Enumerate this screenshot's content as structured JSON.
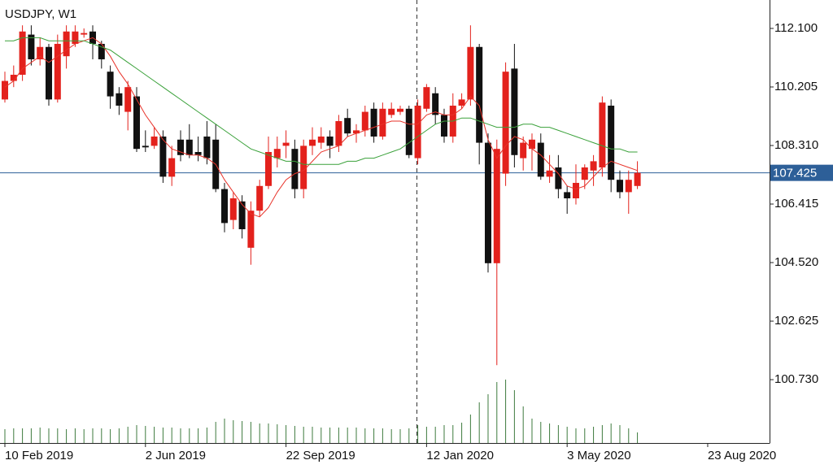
{
  "chart_data": {
    "type": "candlestick",
    "title": "USDJPY, W1",
    "up_color": "#e3211c",
    "down_color": "#111111",
    "open": [
      109.8,
      110.4,
      110.6,
      111.9,
      111.1,
      111.5,
      109.8,
      111.2,
      111.6,
      111.9,
      112.0,
      111.6,
      110.7,
      110.0,
      109.4,
      109.9,
      108.3,
      108.3,
      108.6,
      107.3,
      108.5,
      108.5,
      108.1,
      108.6,
      108.5,
      106.9,
      105.9,
      106.5,
      105.0,
      106.2,
      107.0,
      107.9,
      108.3,
      108.2,
      106.9,
      108.3,
      108.4,
      108.6,
      108.3,
      109.2,
      108.7,
      108.8,
      109.5,
      108.6,
      109.3,
      109.4,
      109.5,
      107.9,
      109.5,
      110.0,
      109.3,
      108.6,
      109.6,
      109.8,
      111.5,
      108.4,
      104.5,
      107.4,
      110.8,
      107.9,
      108.2,
      108.4,
      107.3,
      107.6,
      106.8,
      106.6,
      107.2,
      107.5,
      107.6,
      109.6,
      107.2,
      106.8,
      107.0
    ],
    "high": [
      110.7,
      110.9,
      112.2,
      112.2,
      111.8,
      111.6,
      111.9,
      112.2,
      112.2,
      112.1,
      112.2,
      111.7,
      110.9,
      110.2,
      110.4,
      110.2,
      108.8,
      108.9,
      108.8,
      108.3,
      108.8,
      109.0,
      108.6,
      109.1,
      109.0,
      107.1,
      106.8,
      106.7,
      106.5,
      107.2,
      108.6,
      108.6,
      108.8,
      108.5,
      108.5,
      108.9,
      108.9,
      108.8,
      109.3,
      109.5,
      109.0,
      109.6,
      109.7,
      109.7,
      109.7,
      109.6,
      109.6,
      109.8,
      110.3,
      110.2,
      109.5,
      110.0,
      110.0,
      112.2,
      111.6,
      108.7,
      108.5,
      111.0,
      111.6,
      108.6,
      108.7,
      108.7,
      108.0,
      108.0,
      107.0,
      107.7,
      107.7,
      108.0,
      109.9,
      109.8,
      107.5,
      107.5,
      107.8
    ],
    "low": [
      109.7,
      110.2,
      110.4,
      110.9,
      110.9,
      109.6,
      109.7,
      110.8,
      111.5,
      111.8,
      111.1,
      110.8,
      109.5,
      109.3,
      108.8,
      108.1,
      108.1,
      108.2,
      107.1,
      107.0,
      107.8,
      107.9,
      107.8,
      107.7,
      106.8,
      105.5,
      105.6,
      105.3,
      104.45,
      106.0,
      106.9,
      107.6,
      107.9,
      106.6,
      106.6,
      108.0,
      108.2,
      107.9,
      108.1,
      108.6,
      108.4,
      108.6,
      108.4,
      108.5,
      109.2,
      109.3,
      107.9,
      107.7,
      109.4,
      109.0,
      108.4,
      108.4,
      109.5,
      109.6,
      107.7,
      104.2,
      101.2,
      107.0,
      107.6,
      107.5,
      107.5,
      107.2,
      107.1,
      106.6,
      106.1,
      106.4,
      106.9,
      107.0,
      107.3,
      106.8,
      106.6,
      106.1,
      106.9
    ],
    "close": [
      110.4,
      110.6,
      112.0,
      111.1,
      111.5,
      109.8,
      111.6,
      112.0,
      112.0,
      111.95,
      111.6,
      111.1,
      109.9,
      109.6,
      110.2,
      108.2,
      108.25,
      108.6,
      107.3,
      107.9,
      108.0,
      108.0,
      108.0,
      107.9,
      106.9,
      105.8,
      106.6,
      105.6,
      106.2,
      107.0,
      108.1,
      108.2,
      108.4,
      106.9,
      108.3,
      108.5,
      108.6,
      108.3,
      109.1,
      108.7,
      108.8,
      109.4,
      108.6,
      109.5,
      109.5,
      109.5,
      108.0,
      109.6,
      110.2,
      109.3,
      108.6,
      109.6,
      109.8,
      111.5,
      108.4,
      104.5,
      108.2,
      110.7,
      108.0,
      108.4,
      108.5,
      107.3,
      107.5,
      106.9,
      106.6,
      107.1,
      107.6,
      107.8,
      109.7,
      107.2,
      106.8,
      107.2,
      107.425
    ],
    "moving_averages": [
      {
        "color": "#e8332a",
        "values": [
          110.2,
          110.4,
          110.8,
          111.0,
          111.2,
          111.0,
          111.2,
          111.4,
          111.6,
          111.7,
          111.8,
          111.6,
          111.2,
          110.7,
          110.3,
          109.8,
          109.3,
          108.9,
          108.5,
          108.2,
          108.1,
          108.0,
          108.0,
          107.9,
          107.7,
          107.2,
          106.8,
          106.4,
          106.1,
          106.0,
          106.3,
          106.8,
          107.2,
          107.4,
          107.5,
          107.8,
          108.1,
          108.2,
          108.3,
          108.6,
          108.7,
          108.8,
          108.9,
          109.0,
          109.1,
          109.1,
          109.0,
          109.0,
          109.3,
          109.4,
          109.3,
          109.3,
          109.5,
          109.9,
          109.6,
          108.5,
          107.9,
          108.3,
          108.6,
          108.5,
          108.2,
          108.0,
          107.7,
          107.4,
          107.0,
          106.9,
          107.0,
          107.3,
          107.6,
          107.8,
          107.7,
          107.6,
          107.5
        ]
      },
      {
        "color": "#3aa13a",
        "values": [
          111.7,
          111.7,
          111.8,
          111.8,
          111.8,
          111.7,
          111.7,
          111.7,
          111.7,
          111.7,
          111.6,
          111.5,
          111.4,
          111.2,
          111.0,
          110.8,
          110.6,
          110.4,
          110.2,
          110.0,
          109.8,
          109.6,
          109.4,
          109.2,
          109.0,
          108.8,
          108.6,
          108.4,
          108.2,
          108.1,
          108.0,
          107.9,
          107.8,
          107.8,
          107.7,
          107.7,
          107.7,
          107.7,
          107.7,
          107.8,
          107.8,
          107.9,
          107.9,
          108.0,
          108.1,
          108.2,
          108.4,
          108.6,
          108.8,
          109.0,
          109.1,
          109.1,
          109.2,
          109.2,
          109.1,
          109.0,
          108.9,
          108.9,
          108.9,
          109.0,
          109.0,
          108.9,
          108.9,
          108.8,
          108.7,
          108.6,
          108.5,
          108.4,
          108.3,
          108.2,
          108.2,
          108.1,
          108.1
        ]
      }
    ],
    "volume": {
      "color": "#3d7a3d",
      "values": [
        17,
        18,
        18,
        18,
        19,
        18,
        18,
        17,
        18,
        17,
        18,
        18,
        17,
        18,
        20,
        22,
        21,
        20,
        19,
        19,
        18,
        18,
        18,
        19,
        26,
        30,
        28,
        27,
        26,
        24,
        24,
        23,
        22,
        21,
        20,
        20,
        19,
        19,
        19,
        19,
        19,
        18,
        18,
        18,
        17,
        17,
        18,
        22,
        20,
        20,
        22,
        22,
        25,
        35,
        50,
        60,
        75,
        78,
        65,
        45,
        30,
        26,
        24,
        22,
        20,
        18,
        18,
        20,
        22,
        24,
        22,
        18,
        13
      ]
    },
    "price_line": {
      "value": 107.425,
      "label": "107.425",
      "color": "#2d5f98"
    },
    "xlim": [
      -0.556,
      87.04
    ],
    "ylim": [
      98.68,
      113.02
    ],
    "xticks": [
      {
        "value": 0,
        "label": "10 Feb 2019"
      },
      {
        "value": 16,
        "label": "2 Jun 2019"
      },
      {
        "value": 32,
        "label": "22 Sep 2019"
      },
      {
        "value": 48,
        "label": "12 Jan 2020"
      },
      {
        "value": 64,
        "label": "3 May 2020"
      },
      {
        "value": 80,
        "label": "23 Aug 2020"
      }
    ],
    "yticks": [
      {
        "value": 112.1,
        "label": "112.100"
      },
      {
        "value": 110.205,
        "label": "110.205"
      },
      {
        "value": 108.31,
        "label": "108.310"
      },
      {
        "value": 106.415,
        "label": "106.415"
      },
      {
        "value": 104.52,
        "label": "104.520"
      },
      {
        "value": 102.625,
        "label": "102.625"
      },
      {
        "value": 100.73,
        "label": "100.730"
      }
    ]
  }
}
